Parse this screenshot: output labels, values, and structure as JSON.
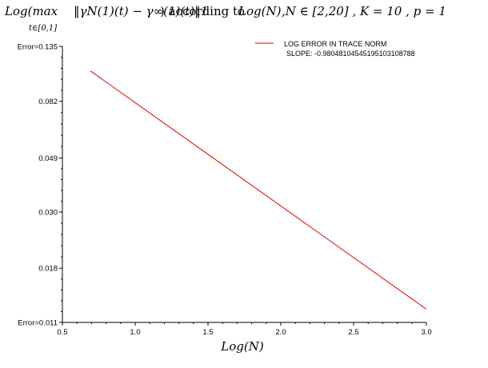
{
  "title": {
    "log_max": "Log(max",
    "subscript": "t∈[0,1]",
    "norm_expr": "‖γN(1)(t) − γ∞(1)(t)‖1",
    "according": ") according to",
    "logn": "Log(N)",
    "conditions": ",N ∈ [2,20] , K = 10 , p = 1"
  },
  "legend": {
    "line1": "LOG ERROR IN TRACE NORM",
    "line2": "SLOPE: -0.98048104545195103108788"
  },
  "chart_data": {
    "type": "line",
    "xlabel": "Log(N)",
    "ylabel": "",
    "log_y": true,
    "xlim": [
      0.5,
      3.0
    ],
    "ylim": [
      0.011,
      0.135
    ],
    "x_ticks": [
      "0.5",
      "1.0",
      "1.5",
      "2.0",
      "2.5",
      "3.0"
    ],
    "y_ticks": [
      "Error=0.011",
      "0.018",
      "0.030",
      "0.049",
      "0.082",
      "Error=0.135"
    ],
    "series": [
      {
        "name": "LOG ERROR IN TRACE NORM",
        "color": "#e00000",
        "x": [
          0.693,
          3.0
        ],
        "y": [
          0.108,
          0.0124
        ]
      }
    ]
  }
}
